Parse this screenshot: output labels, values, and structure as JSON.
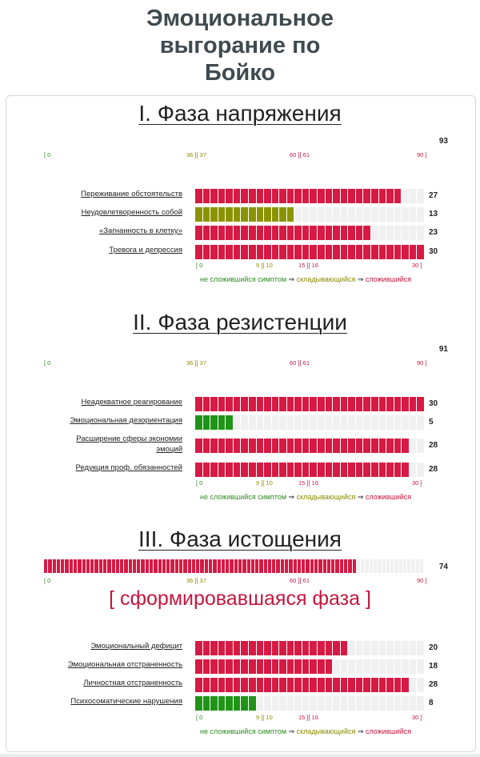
{
  "page": {
    "title_lines": [
      "Эмоциональное",
      "выгорание по",
      "Бойко"
    ]
  },
  "colors": {
    "red": "#d61a44",
    "olive": "#8b9400",
    "green": "#1f9418",
    "empty": "#f0f0f0"
  },
  "phase_scale": {
    "labels": [
      "[ 0",
      "36 ][ 37",
      "60 ][ 61",
      "90 ]"
    ]
  },
  "symptom_scale": {
    "labels": [
      "[ 0",
      "9 ][ 10",
      "15 ][ 16",
      "30 ]"
    ]
  },
  "legend": {
    "not_formed": "не сложившийся симптом",
    "arrow": "⇒",
    "forming": "складывающийся",
    "formed": "сложившийся"
  },
  "phases": [
    {
      "title": "I. Фаза напряжения",
      "total": 93,
      "symptoms": [
        {
          "label": "Переживание обстоятельств",
          "value": 27
        },
        {
          "label": "Неудовлетворенность собой",
          "value": 13
        },
        {
          "label": "«Загнанность в клетку»",
          "value": 23
        },
        {
          "label": "Тревога и депрессия",
          "value": 30
        }
      ]
    },
    {
      "title": "II. Фаза резистенции",
      "total": 91,
      "symptoms": [
        {
          "label": "Неадекватное реагирование",
          "value": 30
        },
        {
          "label": "Эмоциональная дезориентация",
          "value": 5
        },
        {
          "label": "Расширение сферы экономии эмоций",
          "value": 28
        },
        {
          "label": "Редукция проф. обязанностей",
          "value": 28
        }
      ]
    },
    {
      "title": "III. Фаза истощения",
      "total": 74,
      "status": "[ сформировавшаяся фаза ]",
      "symptoms": [
        {
          "label": "Эмоциональный дефицит",
          "value": 20
        },
        {
          "label": "Эмоциональная отстраненность",
          "value": 18
        },
        {
          "label": "Личностная отстраненность",
          "value": 28
        },
        {
          "label": "Психосоматические нарушения",
          "value": 8
        }
      ]
    }
  ]
}
